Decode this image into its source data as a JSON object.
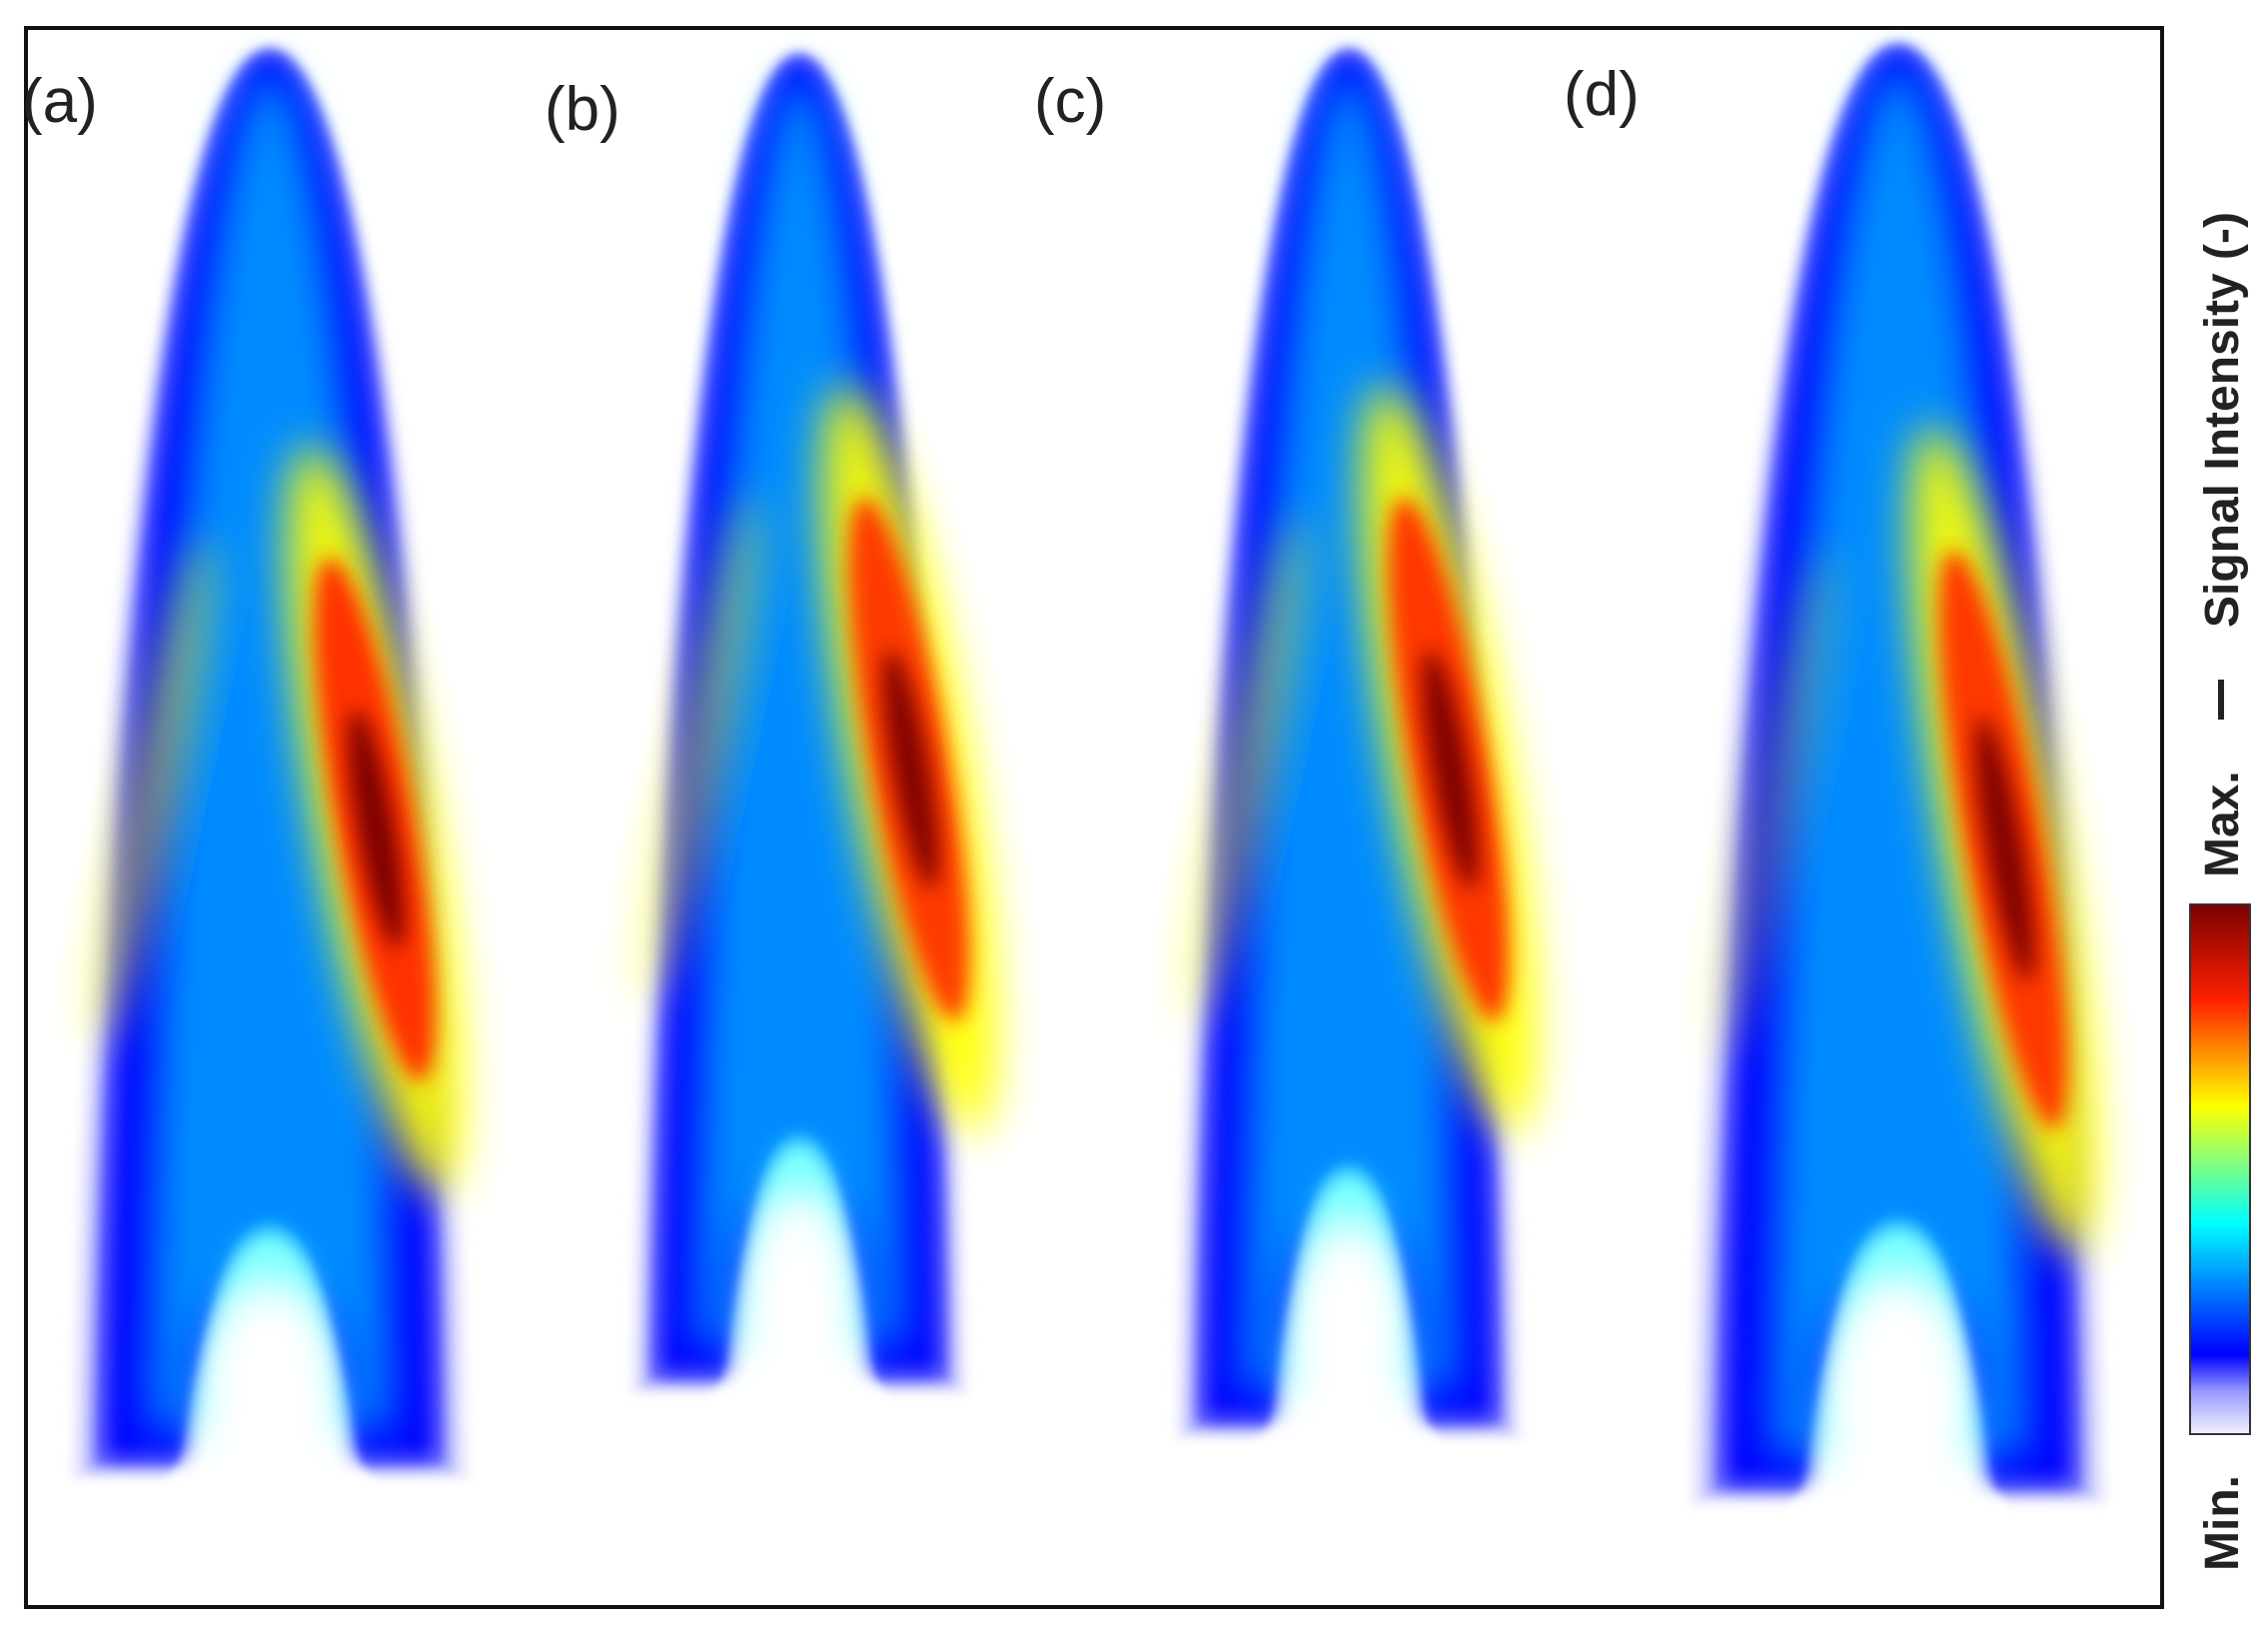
{
  "chart_data": {
    "type": "heatmap",
    "panels": [
      {
        "label": "(a)",
        "hot_spot_intensity": 1.0,
        "left_branch_peak": 0.62
      },
      {
        "label": "(b)",
        "hot_spot_intensity": 0.95,
        "left_branch_peak": 0.55
      },
      {
        "label": "(c)",
        "hot_spot_intensity": 0.97,
        "left_branch_peak": 0.55
      },
      {
        "label": "(d)",
        "hot_spot_intensity": 0.96,
        "left_branch_peak": 0.35
      }
    ],
    "colorbar": {
      "title": "Signal Intensity (-)",
      "min_label": "Min.",
      "max_label": "Max.",
      "colormap": "jet"
    },
    "colors": {
      "min": "#e8e8ff",
      "low": "#0000ff",
      "mid": "#00ffff",
      "high": "#ffff00",
      "hot": "#ff3000",
      "max": "#7a0000"
    }
  }
}
